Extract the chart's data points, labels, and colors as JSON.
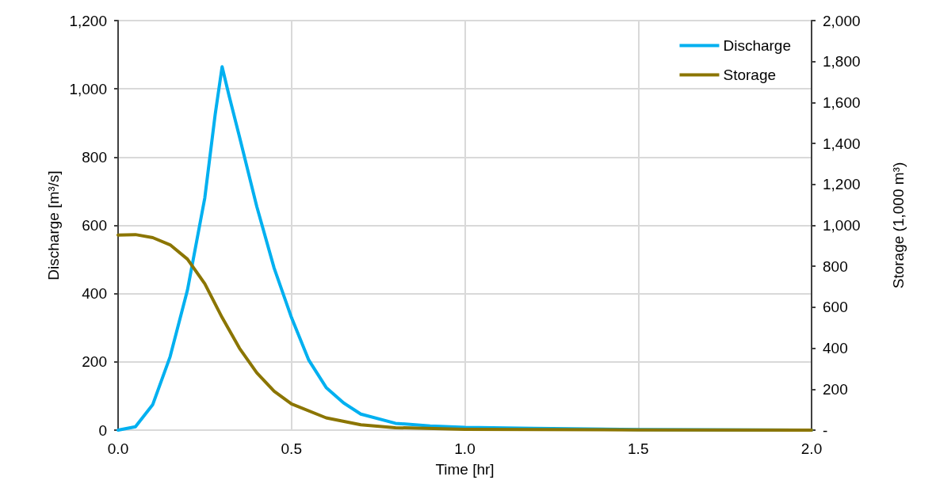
{
  "chart_data": {
    "type": "line",
    "xlabel": "Time [hr]",
    "ylabel": "Discharge [m³/s]",
    "y2label": "Storage (1,000 m³)",
    "xlim": [
      0,
      2
    ],
    "xticks": [
      {
        "value": 0,
        "label": "0.0"
      },
      {
        "value": 0.5,
        "label": "0.5"
      },
      {
        "value": 1,
        "label": "1.0"
      },
      {
        "value": 1.5,
        "label": "1.5"
      },
      {
        "value": 2,
        "label": "2.0"
      }
    ],
    "ylim": [
      0,
      1200
    ],
    "yticks": [
      0,
      200,
      400,
      600,
      800,
      {
        "value": 1000,
        "label": "1,000"
      },
      {
        "value": 1200,
        "label": "1,200"
      }
    ],
    "y2lim": [
      0,
      2000
    ],
    "y2ticks": [
      {
        "value": 0,
        "label": "-"
      },
      200,
      400,
      600,
      800,
      {
        "value": 1000,
        "label": "1,000"
      },
      {
        "value": 1200,
        "label": "1,200"
      },
      {
        "value": 1400,
        "label": "1,400"
      },
      {
        "value": 1600,
        "label": "1,600"
      },
      {
        "value": 1800,
        "label": "1,800"
      },
      {
        "value": 2000,
        "label": "2,000"
      }
    ],
    "grid": true,
    "legend": "top right",
    "marker": "none",
    "line_style": "solid",
    "series": [
      {
        "name": "Discharge",
        "color": "#00b0f0",
        "x": [
          0,
          0.05,
          0.1,
          0.15,
          0.2,
          0.25,
          0.28,
          0.3,
          0.32,
          0.35,
          0.4,
          0.45,
          0.5,
          0.55,
          0.6,
          0.65,
          0.7,
          0.8,
          0.9,
          1.0,
          1.2,
          1.5,
          2.0
        ],
        "values": [
          0,
          10,
          75,
          215,
          410,
          680,
          925,
          1065,
          980,
          860,
          655,
          475,
          330,
          205,
          125,
          80,
          47,
          20,
          12,
          8,
          5,
          2,
          0
        ]
      },
      {
        "name": "Storage",
        "color": "#8b7500",
        "axis": "y2",
        "x": [
          0,
          0.05,
          0.1,
          0.15,
          0.2,
          0.25,
          0.3,
          0.35,
          0.4,
          0.45,
          0.5,
          0.6,
          0.7,
          0.8,
          1.0,
          1.5,
          2.0
        ],
        "values": [
          953,
          955,
          940,
          905,
          835,
          715,
          550,
          400,
          280,
          190,
          128,
          60,
          26,
          12,
          4,
          1,
          0
        ]
      }
    ]
  }
}
